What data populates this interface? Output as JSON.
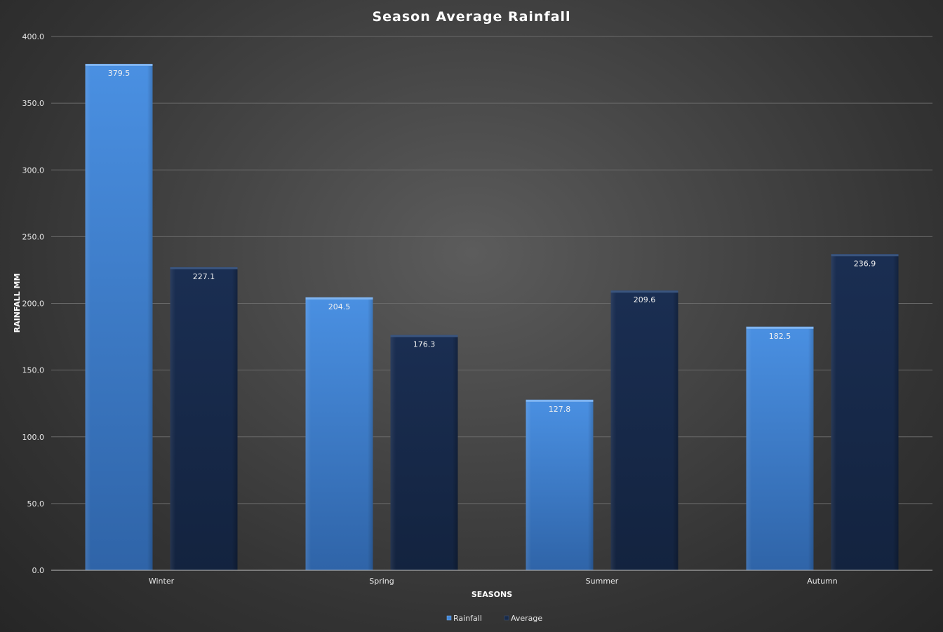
{
  "chart_data": {
    "type": "bar",
    "title": "Season Average Rainfall",
    "xlabel": "SEASONS",
    "ylabel": "RAINFALL MM",
    "categories": [
      "Winter",
      "Spring",
      "Summer",
      "Autumn"
    ],
    "series": [
      {
        "name": "Rainfall",
        "values": [
          379.5,
          204.5,
          127.8,
          182.5
        ],
        "color": "#4187d9"
      },
      {
        "name": "Average",
        "values": [
          227.1,
          176.3,
          209.6,
          236.9
        ],
        "color": "#172a4a"
      }
    ],
    "ylim": [
      0,
      400
    ],
    "ytick_step": 50,
    "ytick_labels": [
      "0.0",
      "50.0",
      "100.0",
      "150.0",
      "200.0",
      "250.0",
      "300.0",
      "350.0",
      "400.0"
    ],
    "data_labels": [
      [
        "379.5",
        "204.5",
        "127.8",
        "182.5"
      ],
      [
        "227.1",
        "176.3",
        "209.6",
        "236.9"
      ]
    ],
    "grid": true,
    "legend_position": "bottom"
  }
}
